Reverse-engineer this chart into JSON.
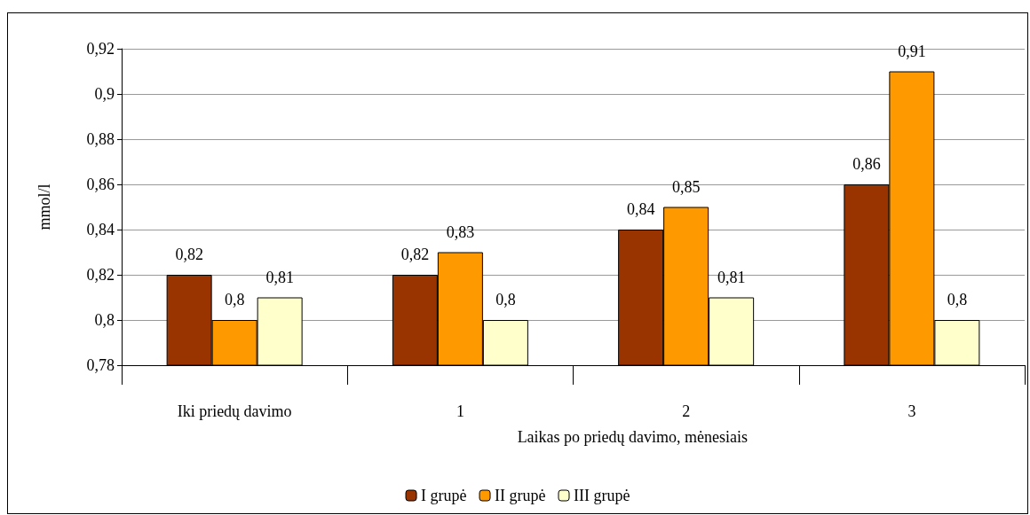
{
  "chart_data": {
    "type": "bar",
    "ylabel": "mmol/l",
    "xlabel": "Laikas po priedų davimo, mėnesiais",
    "categories": [
      "Iki priedų davimo",
      "1",
      "2",
      "3"
    ],
    "series": [
      {
        "name": "I grupė",
        "color": "#993300",
        "values": [
          0.82,
          0.82,
          0.84,
          0.86
        ],
        "value_labels": [
          "0,82",
          "0,82",
          "0,84",
          "0,86"
        ]
      },
      {
        "name": "II grupė",
        "color": "#ff9900",
        "values": [
          0.8,
          0.83,
          0.85,
          0.91
        ],
        "value_labels": [
          "0,8",
          "0,83",
          "0,85",
          "0,91"
        ]
      },
      {
        "name": "III grupė",
        "color": "#ffffcc",
        "values": [
          0.81,
          0.8,
          0.81,
          0.8
        ],
        "value_labels": [
          "0,81",
          "0,8",
          "0,81",
          "0,8"
        ]
      }
    ],
    "ylim": [
      0.78,
      0.92
    ],
    "yticks": [
      {
        "value": 0.78,
        "label": "0,78"
      },
      {
        "value": 0.8,
        "label": "0,8"
      },
      {
        "value": 0.82,
        "label": "0,82"
      },
      {
        "value": 0.84,
        "label": "0,84"
      },
      {
        "value": 0.86,
        "label": "0,86"
      },
      {
        "value": 0.88,
        "label": "0,88"
      },
      {
        "value": 0.9,
        "label": "0,9"
      },
      {
        "value": 0.92,
        "label": "0,92"
      }
    ],
    "grid": "y",
    "legend": "bottom"
  }
}
